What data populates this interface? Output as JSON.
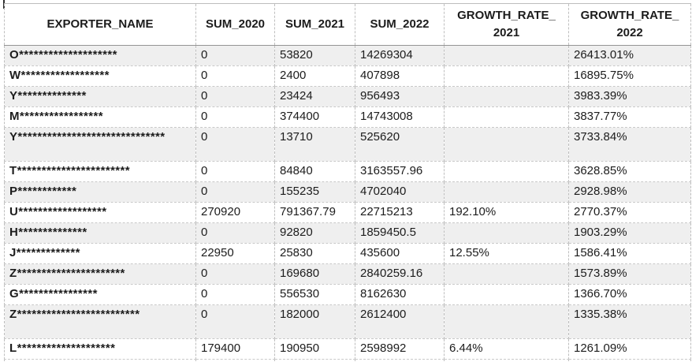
{
  "table": {
    "headers": [
      {
        "label": "EXPORTER_NAME"
      },
      {
        "label": "SUM_2020"
      },
      {
        "label": "SUM_2021"
      },
      {
        "label": "SUM_2022"
      },
      {
        "label": "GROWTH_RATE_",
        "label2": "2021"
      },
      {
        "label": "GROWTH_RATE_",
        "label2": "2022"
      }
    ],
    "rows": [
      {
        "name": "O********************",
        "sum_2020": "0",
        "sum_2021": "53820",
        "sum_2022": "14269304",
        "gr_2021": "",
        "gr_2022": "26413.01%"
      },
      {
        "name": "W******************",
        "sum_2020": "0",
        "sum_2021": "2400",
        "sum_2022": "407898",
        "gr_2021": "",
        "gr_2022": "16895.75%"
      },
      {
        "name": "Y**************",
        "sum_2020": "0",
        "sum_2021": "23424",
        "sum_2022": "956493",
        "gr_2021": "",
        "gr_2022": "3983.39%"
      },
      {
        "name": "M*****************",
        "sum_2020": "0",
        "sum_2021": "374400",
        "sum_2022": "14743008",
        "gr_2021": "",
        "gr_2022": "3837.77%"
      },
      {
        "name": "Y******************************",
        "sum_2020": "0",
        "sum_2021": "13710",
        "sum_2022": "525620",
        "gr_2021": "",
        "gr_2022": "3733.84%"
      },
      {
        "name": "T***********************",
        "sum_2020": "0",
        "sum_2021": "84840",
        "sum_2022": "3163557.96",
        "gr_2021": "",
        "gr_2022": "3628.85%"
      },
      {
        "name": "P************",
        "sum_2020": "0",
        "sum_2021": "155235",
        "sum_2022": "4702040",
        "gr_2021": "",
        "gr_2022": "2928.98%"
      },
      {
        "name": "U******************",
        "sum_2020": "270920",
        "sum_2021": "791367.79",
        "sum_2022": "22715213",
        "gr_2021": "192.10%",
        "gr_2022": "2770.37%"
      },
      {
        "name": "H**************",
        "sum_2020": "0",
        "sum_2021": "92820",
        "sum_2022": "1859450.5",
        "gr_2021": "",
        "gr_2022": "1903.29%"
      },
      {
        "name": "J*************",
        "sum_2020": "22950",
        "sum_2021": "25830",
        "sum_2022": "435600",
        "gr_2021": "12.55%",
        "gr_2022": "1586.41%"
      },
      {
        "name": "Z**********************",
        "sum_2020": "0",
        "sum_2021": "169680",
        "sum_2022": "2840259.16",
        "gr_2021": "",
        "gr_2022": "1573.89%"
      },
      {
        "name": "G****************",
        "sum_2020": "0",
        "sum_2021": "556530",
        "sum_2022": "8162630",
        "gr_2021": "",
        "gr_2022": "1366.70%"
      },
      {
        "name": "Z*************************",
        "sum_2020": "0",
        "sum_2021": "182000",
        "sum_2022": "2612400",
        "gr_2021": "",
        "gr_2022": "1335.38%"
      },
      {
        "name": "L********************",
        "sum_2020": "179400",
        "sum_2021": "190950",
        "sum_2022": "2598992",
        "gr_2021": "6.44%",
        "gr_2022": "1261.09%"
      }
    ]
  }
}
